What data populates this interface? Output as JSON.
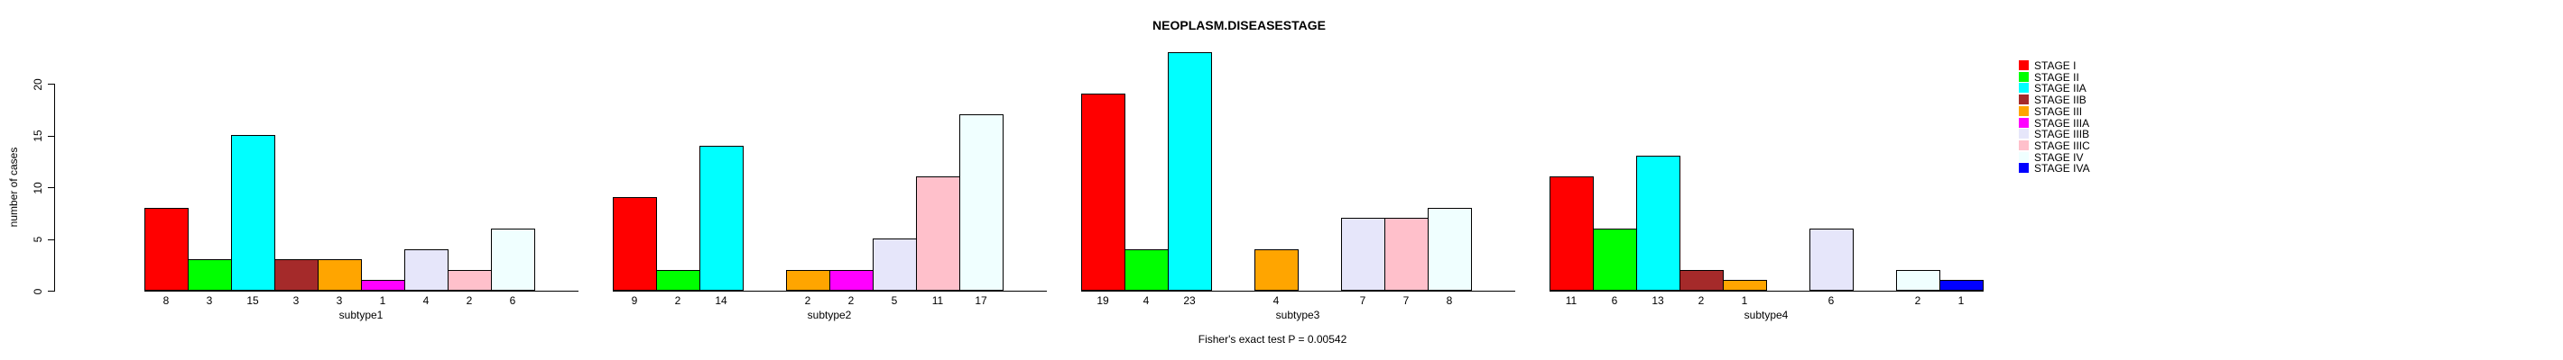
{
  "title": "NEOPLASM.DISEASESTAGE",
  "footer": "Fisher's exact test P = 0.00542",
  "y_axis": {
    "label": "number of cases",
    "ticks": [
      0,
      5,
      10,
      15,
      20
    ]
  },
  "legend": {
    "items": [
      {
        "label": "STAGE I",
        "color": "#FF0000"
      },
      {
        "label": "STAGE II",
        "color": "#00FF00"
      },
      {
        "label": "STAGE IIA",
        "color": "#00FFFF"
      },
      {
        "label": "STAGE IIB",
        "color": "#A52A2A"
      },
      {
        "label": "STAGE III",
        "color": "#FFA500"
      },
      {
        "label": "STAGE IIIA",
        "color": "#FF00FF"
      },
      {
        "label": "STAGE IIIB",
        "color": "#E6E6FA"
      },
      {
        "label": "STAGE IIIC",
        "color": "#FFC0CB"
      },
      {
        "label": "STAGE IV",
        "color": "#F0FFFF"
      },
      {
        "label": "STAGE IVA",
        "color": "#0000FF"
      }
    ]
  },
  "chart_data": {
    "type": "bar",
    "title": "NEOPLASM.DISEASESTAGE",
    "xlabel": "",
    "ylabel": "number of cases",
    "ylim": [
      0,
      23
    ],
    "yticks": [
      0,
      5,
      10,
      15,
      20
    ],
    "grid": false,
    "legend_position": "right",
    "annotation": "Fisher's exact test P = 0.00542",
    "series_labels": [
      "STAGE I",
      "STAGE II",
      "STAGE IIA",
      "STAGE IIB",
      "STAGE III",
      "STAGE IIIA",
      "STAGE IIIB",
      "STAGE IIIC",
      "STAGE IV",
      "STAGE IVA"
    ],
    "series_colors": [
      "#FF0000",
      "#00FF00",
      "#00FFFF",
      "#A52A2A",
      "#FFA500",
      "#FF00FF",
      "#E6E6FA",
      "#FFC0CB",
      "#F0FFFF",
      "#0000FF"
    ],
    "groups": [
      {
        "label": "subtype1",
        "values": [
          8,
          3,
          15,
          3,
          3,
          1,
          4,
          2,
          6,
          0
        ]
      },
      {
        "label": "subtype2",
        "values": [
          9,
          2,
          14,
          0,
          2,
          2,
          5,
          11,
          17,
          0
        ]
      },
      {
        "label": "subtype3",
        "values": [
          19,
          4,
          23,
          0,
          4,
          0,
          7,
          7,
          8,
          0
        ]
      },
      {
        "label": "subtype4",
        "values": [
          11,
          6,
          13,
          2,
          1,
          0,
          6,
          0,
          2,
          1
        ]
      }
    ]
  }
}
